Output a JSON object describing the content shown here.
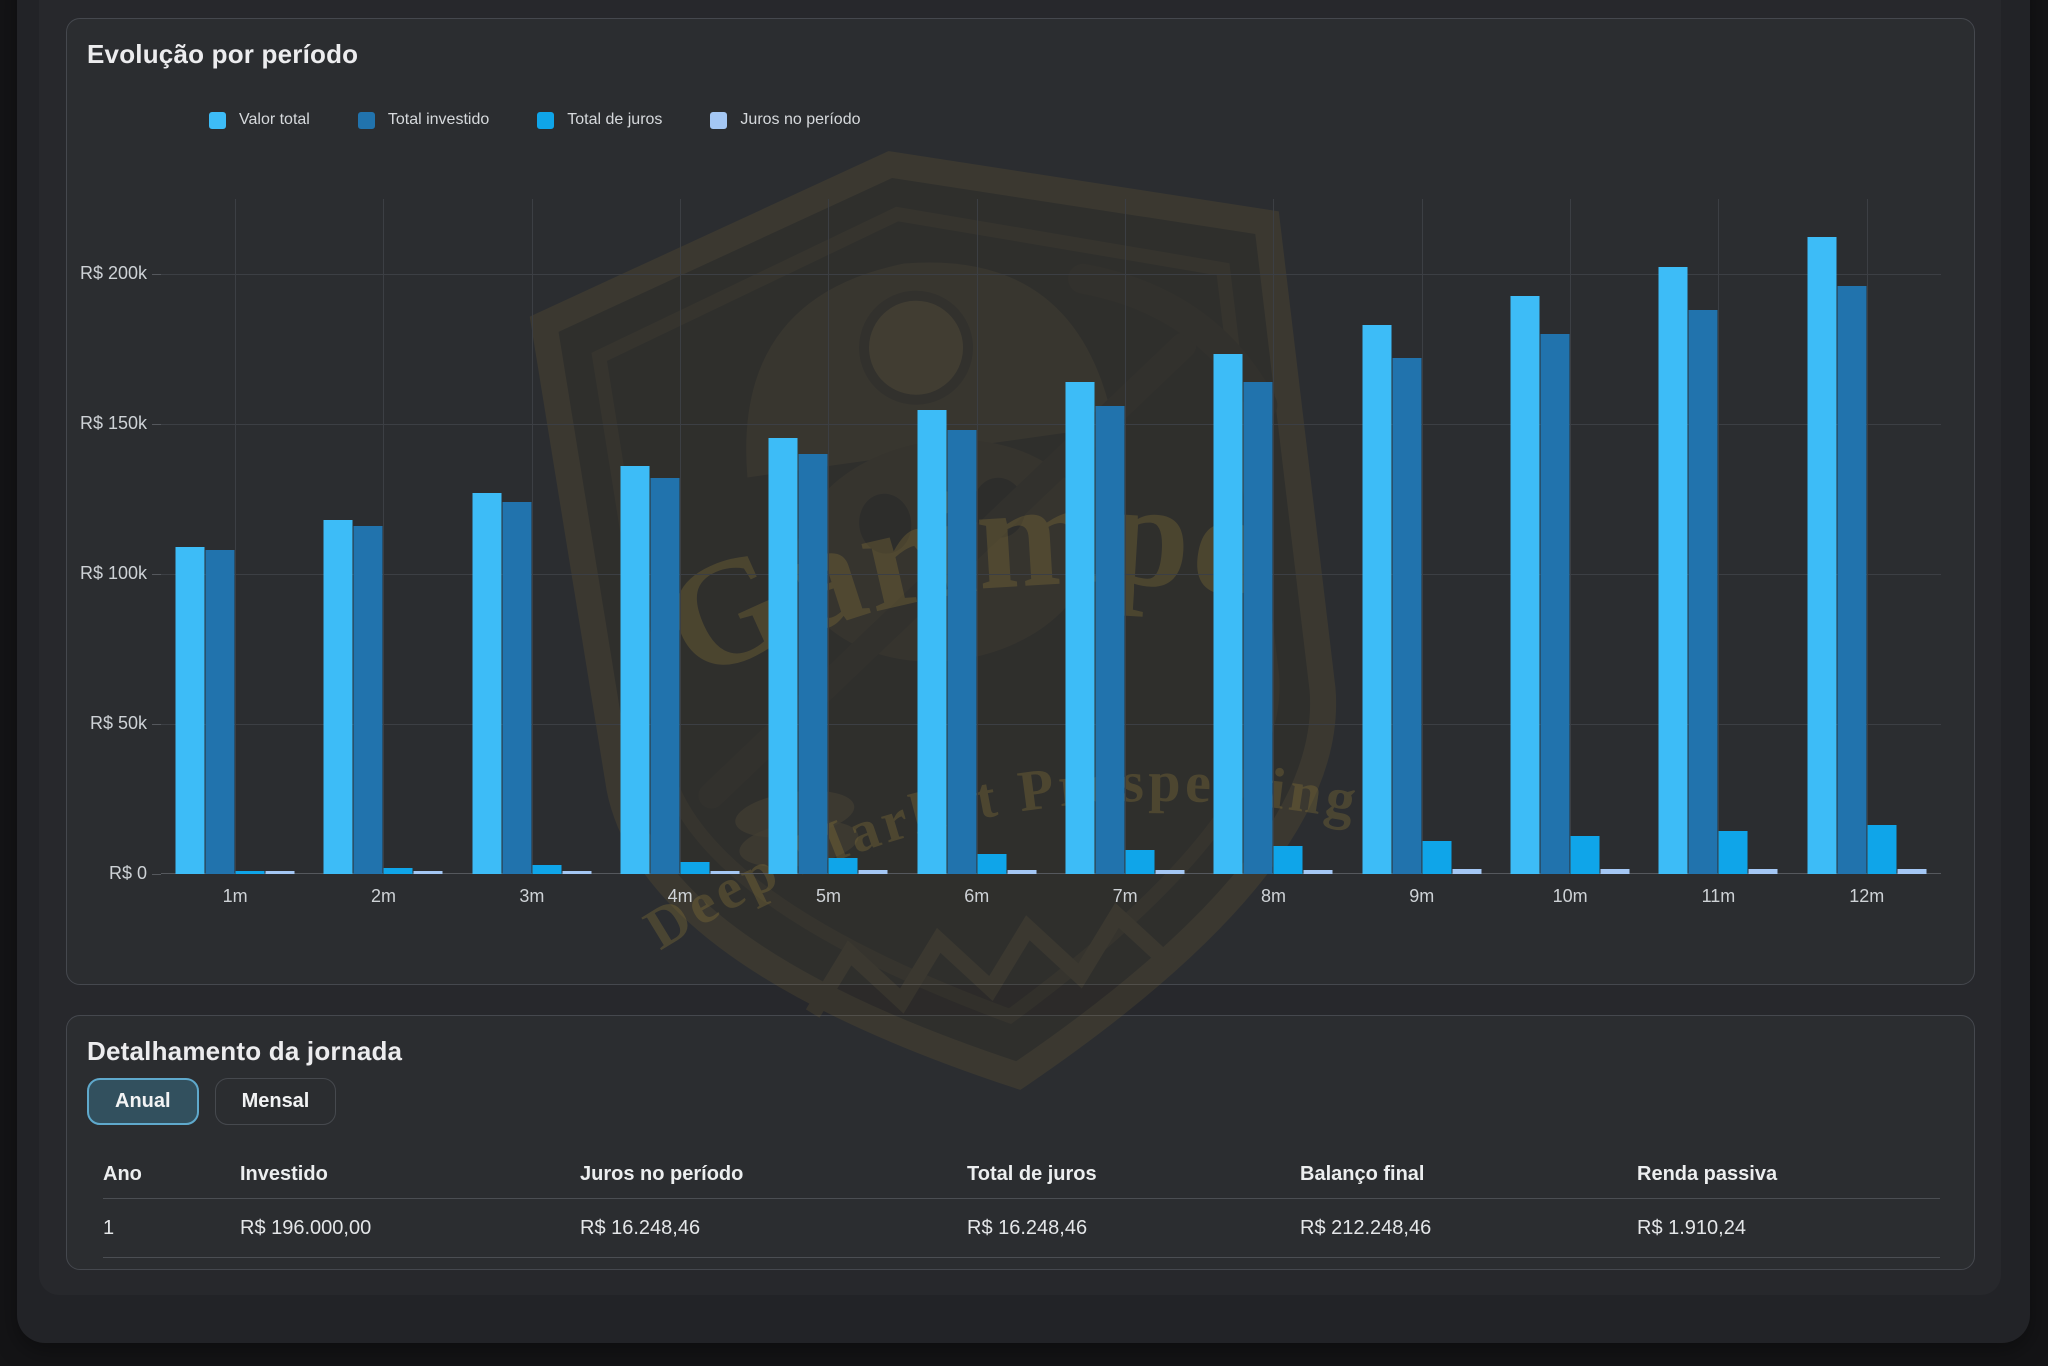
{
  "chart_card": {
    "title": "Evolução por período"
  },
  "chart_data": {
    "type": "bar",
    "title": "Evolução por período",
    "categories": [
      "1m",
      "2m",
      "3m",
      "4m",
      "5m",
      "6m",
      "7m",
      "8m",
      "9m",
      "10m",
      "11m",
      "12m"
    ],
    "series": [
      {
        "name": "Valor total",
        "color": "#3dbcf7",
        "values": [
          108900,
          117880,
          126941,
          136083,
          145308,
          154616,
          164008,
          173484,
          183045,
          192692,
          202427,
          212248
        ]
      },
      {
        "name": "Total investido",
        "color": "#2173ad",
        "values": [
          108000,
          116000,
          124000,
          132000,
          140000,
          148000,
          156000,
          164000,
          172000,
          180000,
          188000,
          196000
        ]
      },
      {
        "name": "Total de juros",
        "color": "#0fa5e9",
        "values": [
          900,
          1880,
          2941,
          4083,
          5308,
          6616,
          8008,
          9484,
          11045,
          12692,
          14427,
          16248
        ]
      },
      {
        "name": "Juros no período",
        "color": "#a4c7f4",
        "values": [
          900,
          980,
          1061,
          1142,
          1225,
          1308,
          1392,
          1476,
          1561,
          1647,
          1734,
          1822
        ]
      }
    ],
    "ylabel": "",
    "xlabel": "",
    "ylim": [
      0,
      225000
    ],
    "y_ticks": [
      {
        "value": 0,
        "label": "R$ 0"
      },
      {
        "value": 50000,
        "label": "R$ 50k"
      },
      {
        "value": 100000,
        "label": "R$ 100k"
      },
      {
        "value": 150000,
        "label": "R$ 150k"
      },
      {
        "value": 200000,
        "label": "R$ 200k"
      }
    ],
    "grid": true,
    "legend_position": "top"
  },
  "detail_card": {
    "title": "Detalhamento da jornada",
    "tabs": [
      {
        "label": "Anual",
        "active": true
      },
      {
        "label": "Mensal",
        "active": false
      }
    ],
    "table": {
      "columns": [
        "Ano",
        "Investido",
        "Juros no período",
        "Total de juros",
        "Balanço final",
        "Renda passiva"
      ],
      "rows": [
        [
          "1",
          "R$ 196.000,00",
          "R$ 16.248,46",
          "R$ 16.248,46",
          "R$ 212.248,46",
          "R$ 1.910,24"
        ]
      ]
    }
  },
  "watermark": {
    "name": "Garimpo",
    "tagline": "Deep Market Prospecting",
    "color": "#8d7839"
  },
  "colors": {
    "card_bg": "#2b2d30",
    "accent_active_tab_border": "#5fa9cc",
    "grid": "#3c3f44",
    "axis_text": "#ced2d6"
  }
}
